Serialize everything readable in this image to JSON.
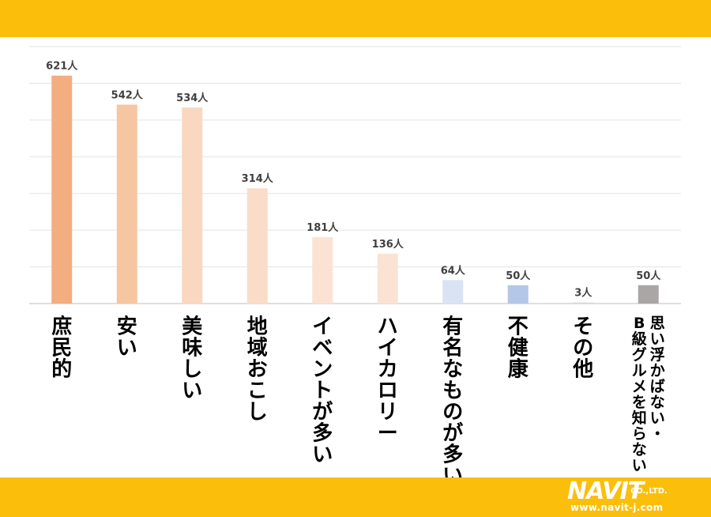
{
  "chart_data": {
    "type": "bar",
    "title": "",
    "xlabel": "",
    "ylabel": "",
    "ylim": [
      0,
      700
    ],
    "grid": true,
    "legend": "none",
    "categories": [
      "庶民的",
      "安い",
      "美味しい",
      "地域おこし",
      "イベントが多い",
      "ハイカロリー",
      "有名なものが多い",
      "不健康",
      "その他",
      "思い浮かばない・B級グルメを知らない"
    ],
    "category_columns": [
      [
        "庶民的"
      ],
      [
        "安い"
      ],
      [
        "美味しい"
      ],
      [
        "地域おこし"
      ],
      [
        "イベントが多い"
      ],
      [
        "ハイカロリー"
      ],
      [
        "有名なものが多い"
      ],
      [
        "不健康"
      ],
      [
        "その他"
      ],
      [
        "思い浮かばない・",
        "B級グルメを知らない"
      ]
    ],
    "values": [
      621,
      542,
      534,
      314,
      181,
      136,
      64,
      50,
      3,
      50
    ],
    "value_labels": [
      "621人",
      "542人",
      "534人",
      "314人",
      "181人",
      "136人",
      "64人",
      "50人",
      "3人",
      "50人"
    ],
    "bar_colors": [
      "#F2AE80",
      "#F6C6A3",
      "#F9D7C0",
      "#FADCC8",
      "#FBE3D3",
      "#FBE3D3",
      "#DAE3F3",
      "#B4C7E7",
      "#D9D9D9",
      "#ABA6A6"
    ]
  },
  "logo": {
    "brand": "NAVIT",
    "company": "CO.,LTD.",
    "url": "www.navit-j.com"
  }
}
